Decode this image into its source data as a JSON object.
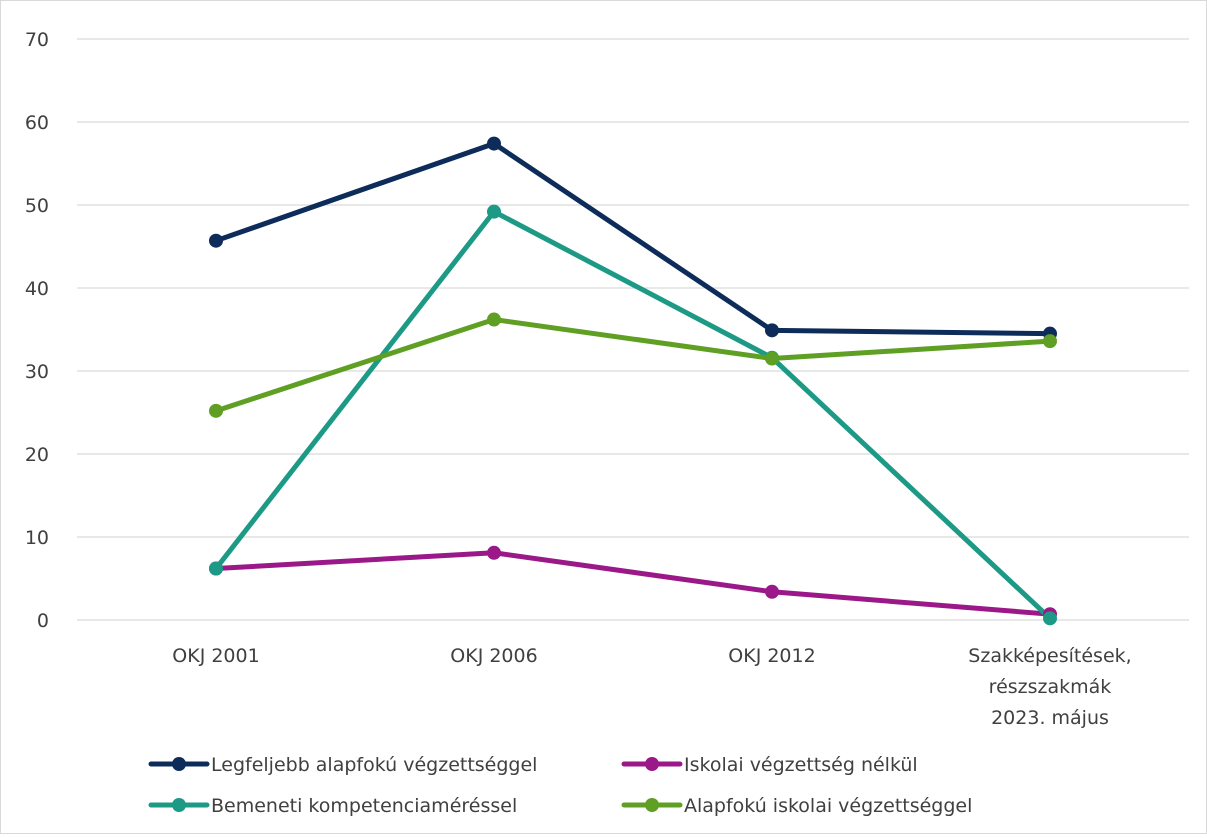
{
  "chart_data": {
    "type": "line",
    "title": "",
    "xlabel": "",
    "ylabel": "",
    "ylim": [
      0,
      70
    ],
    "yticks": [
      0,
      10,
      20,
      30,
      40,
      50,
      60,
      70
    ],
    "grid": true,
    "legend_position": "bottom",
    "categories": [
      [
        "OKJ 2001"
      ],
      [
        "OKJ 2006"
      ],
      [
        "OKJ 2012"
      ],
      [
        "Szakképesítések,",
        "részszakmák",
        "2023. május"
      ]
    ],
    "series": [
      {
        "name": "Legfeljebb alapfokú végzettséggel",
        "color": "#0d2c5a",
        "values": [
          45.7,
          57.4,
          34.9,
          34.5
        ]
      },
      {
        "name": "Iskolai végzettség nélkül",
        "color": "#9b1889",
        "values": [
          6.2,
          8.1,
          3.4,
          0.7
        ]
      },
      {
        "name": "Bemeneti kompetenciaméréssel",
        "color": "#1c9a86",
        "values": [
          6.2,
          49.2,
          31.6,
          0.2
        ]
      },
      {
        "name": "Alapfokú iskolai végzettséggel",
        "color": "#5f9f24",
        "values": [
          25.2,
          36.2,
          31.5,
          33.6
        ]
      }
    ]
  }
}
